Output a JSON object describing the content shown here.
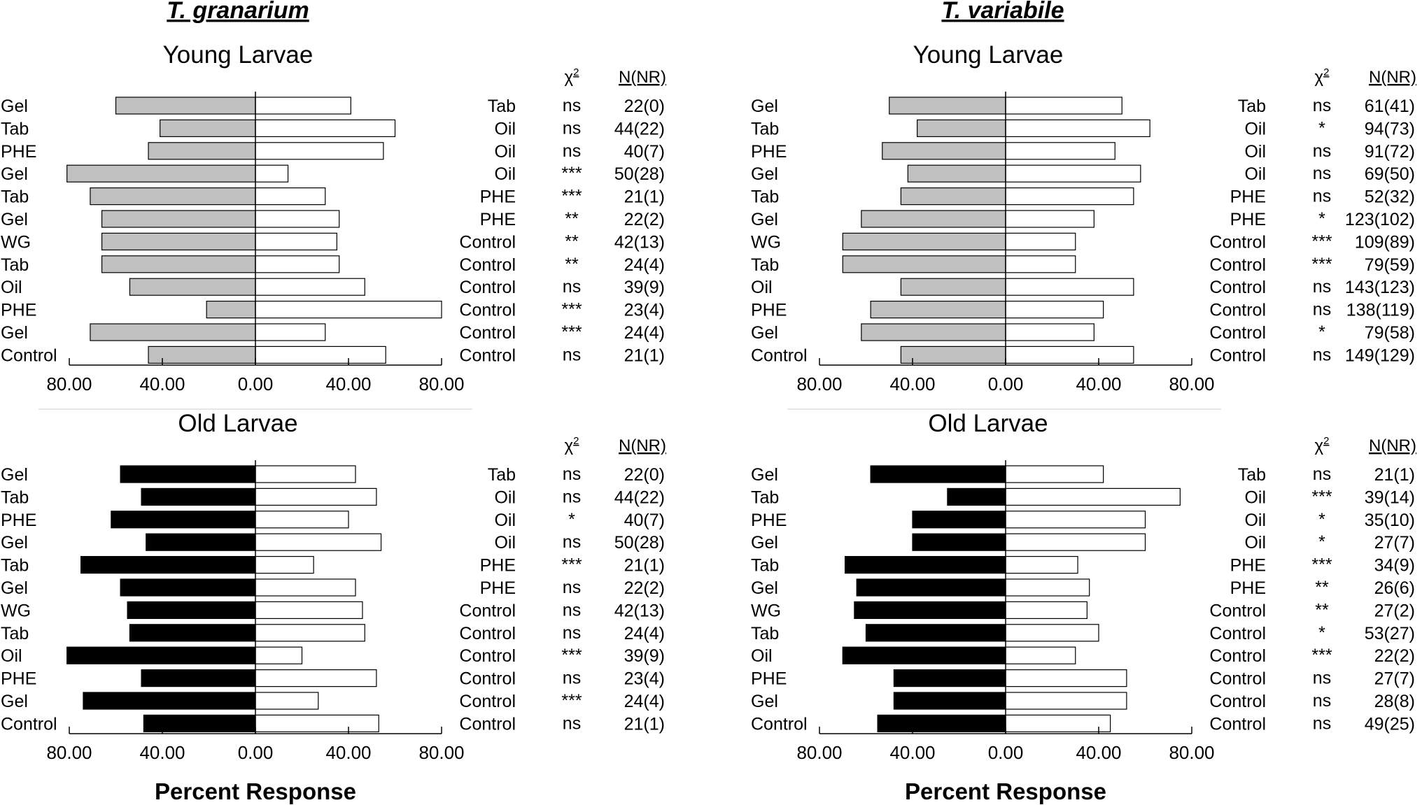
{
  "figure": {
    "species": [
      "T. granarium",
      "T. variabile"
    ],
    "young_title": "Young Larvae",
    "old_title": "Old Larvae",
    "xlabel": "Percent Response",
    "chi_header": "χ",
    "chi_sup": "2",
    "n_header": "N(NR)",
    "colors": {
      "young": "#c0c0c0",
      "old": "#000000",
      "right": "#ffffff",
      "stroke": "#000000"
    }
  },
  "chart_data": [
    {
      "type": "bar",
      "title": "T. granarium — Young Larvae",
      "orientation": "diverging-horizontal",
      "xlabel": "Percent Response",
      "xlim": [
        -80,
        80
      ],
      "xticks": [
        "80.00",
        "40.00",
        "0.00",
        "40.00",
        "80.00"
      ],
      "categories": [
        "Gel",
        "Tab",
        "PHE",
        "Gel",
        "Tab",
        "Gel",
        "WG",
        "Tab",
        "Oil",
        "PHE",
        "Gel",
        "Control"
      ],
      "comparisons": [
        "Tab",
        "Oil",
        "Oil",
        "Oil",
        "PHE",
        "PHE",
        "Control",
        "Control",
        "Control",
        "Control",
        "Control",
        "Control"
      ],
      "series": [
        {
          "name": "left treatment",
          "color": "#c0c0c0",
          "values": [
            60,
            41,
            46,
            81,
            71,
            66,
            66,
            66,
            54,
            21,
            71,
            46
          ]
        },
        {
          "name": "right treatment",
          "color": "#ffffff",
          "values": [
            41,
            60,
            55,
            14,
            30,
            36,
            35,
            36,
            47,
            80,
            30,
            56
          ]
        }
      ],
      "chi2": [
        "ns",
        "ns",
        "ns",
        "***",
        "***",
        "**",
        "**",
        "**",
        "ns",
        "***",
        "***",
        "ns"
      ],
      "n_nr": [
        "22(0)",
        "44(22)",
        "40(7)",
        "50(28)",
        "21(1)",
        "22(2)",
        "42(13)",
        "24(4)",
        "39(9)",
        "23(4)",
        "24(4)",
        "21(1)"
      ]
    },
    {
      "type": "bar",
      "title": "T. variabile — Young Larvae",
      "orientation": "diverging-horizontal",
      "xlabel": "Percent Response",
      "xlim": [
        -80,
        80
      ],
      "xticks": [
        "80.00",
        "40.00",
        "0.00",
        "40.00",
        "80.00"
      ],
      "categories": [
        "Gel",
        "Tab",
        "PHE",
        "Gel",
        "Tab",
        "Gel",
        "WG",
        "Tab",
        "Oil",
        "PHE",
        "Gel",
        "Control"
      ],
      "comparisons": [
        "Tab",
        "Oil",
        "Oil",
        "Oil",
        "PHE",
        "PHE",
        "Control",
        "Control",
        "Control",
        "Control",
        "Control",
        "Control"
      ],
      "series": [
        {
          "name": "left treatment",
          "color": "#c0c0c0",
          "values": [
            50,
            38,
            53,
            42,
            45,
            62,
            70,
            70,
            45,
            58,
            62,
            45
          ]
        },
        {
          "name": "right treatment",
          "color": "#ffffff",
          "values": [
            50,
            62,
            47,
            58,
            55,
            38,
            30,
            30,
            55,
            42,
            38,
            55
          ]
        }
      ],
      "chi2": [
        "ns",
        "*",
        "ns",
        "ns",
        "ns",
        "*",
        "***",
        "***",
        "ns",
        "ns",
        "*",
        "ns"
      ],
      "n_nr": [
        "61(41)",
        "94(73)",
        "91(72)",
        "69(50)",
        "52(32)",
        "123(102)",
        "109(89)",
        "79(59)",
        "143(123)",
        "138(119)",
        "79(58)",
        "149(129)"
      ]
    },
    {
      "type": "bar",
      "title": "T. granarium — Old Larvae",
      "orientation": "diverging-horizontal",
      "xlabel": "Percent Response",
      "xlim": [
        -80,
        80
      ],
      "xticks": [
        "80.00",
        "40.00",
        "0.00",
        "40.00",
        "80.00"
      ],
      "categories": [
        "Gel",
        "Tab",
        "PHE",
        "Gel",
        "Tab",
        "Gel",
        "WG",
        "Tab",
        "Oil",
        "PHE",
        "Gel",
        "Control"
      ],
      "comparisons": [
        "Tab",
        "Oil",
        "Oil",
        "Oil",
        "PHE",
        "PHE",
        "Control",
        "Control",
        "Control",
        "Control",
        "Control",
        "Control"
      ],
      "series": [
        {
          "name": "left treatment",
          "color": "#000000",
          "values": [
            58,
            49,
            62,
            47,
            75,
            58,
            55,
            54,
            81,
            49,
            74,
            48
          ]
        },
        {
          "name": "right treatment",
          "color": "#ffffff",
          "values": [
            43,
            52,
            40,
            54,
            25,
            43,
            46,
            47,
            20,
            52,
            27,
            53
          ]
        }
      ],
      "chi2": [
        "ns",
        "ns",
        "*",
        "ns",
        "***",
        "ns",
        "ns",
        "ns",
        "***",
        "ns",
        "***",
        "ns"
      ],
      "n_nr": [
        "22(0)",
        "44(22)",
        "40(7)",
        "50(28)",
        "21(1)",
        "22(2)",
        "42(13)",
        "24(4)",
        "39(9)",
        "23(4)",
        "24(4)",
        "21(1)"
      ]
    },
    {
      "type": "bar",
      "title": "T. variabile — Old Larvae",
      "orientation": "diverging-horizontal",
      "xlabel": "Percent Response",
      "xlim": [
        -80,
        80
      ],
      "xticks": [
        "80.00",
        "40.00",
        "0.00",
        "40.00",
        "80.00"
      ],
      "categories": [
        "Gel",
        "Tab",
        "PHE",
        "Gel",
        "Tab",
        "Gel",
        "WG",
        "Tab",
        "Oil",
        "PHE",
        "Gel",
        "Control"
      ],
      "comparisons": [
        "Tab",
        "Oil",
        "Oil",
        "Oil",
        "PHE",
        "PHE",
        "Control",
        "Control",
        "Control",
        "Control",
        "Control",
        "Control"
      ],
      "series": [
        {
          "name": "left treatment",
          "color": "#000000",
          "values": [
            58,
            25,
            40,
            40,
            69,
            64,
            65,
            60,
            70,
            48,
            48,
            55
          ]
        },
        {
          "name": "right treatment",
          "color": "#ffffff",
          "values": [
            42,
            75,
            60,
            60,
            31,
            36,
            35,
            40,
            30,
            52,
            52,
            45
          ]
        }
      ],
      "chi2": [
        "ns",
        "***",
        "*",
        "*",
        "***",
        "**",
        "**",
        "*",
        "***",
        "ns",
        "ns",
        "ns"
      ],
      "n_nr": [
        "21(1)",
        "39(14)",
        "35(10)",
        "27(7)",
        "34(9)",
        "26(6)",
        "27(2)",
        "53(27)",
        "22(2)",
        "27(7)",
        "28(8)",
        "49(25)"
      ]
    }
  ]
}
